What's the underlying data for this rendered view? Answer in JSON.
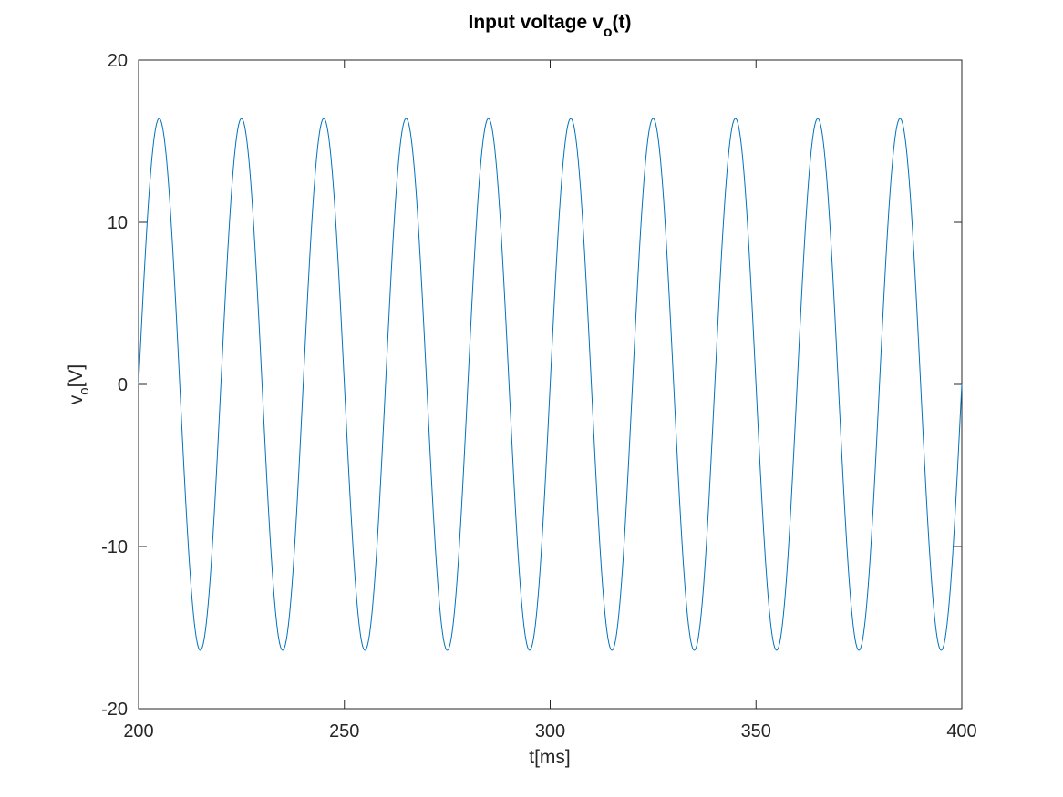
{
  "chart_data": {
    "type": "line",
    "title": {
      "prefix": "Input voltage v",
      "subscript": "o",
      "suffix": "(t)"
    },
    "xlabel": "t[ms]",
    "ylabel": {
      "prefix": "v",
      "subscript": "o",
      "suffix": "[V]"
    },
    "xlim": [
      200,
      400
    ],
    "ylim": [
      -20,
      20
    ],
    "xticks": [
      200,
      250,
      300,
      350,
      400
    ],
    "yticks": [
      -20,
      -10,
      0,
      10,
      20
    ],
    "grid": false,
    "legend": "none",
    "series": [
      {
        "function": "sine",
        "amplitude": 16.4,
        "frequency_hz": 50,
        "phase_rad": 0,
        "x_start": 200,
        "x_end": 400,
        "color": "#0072bd"
      }
    ],
    "colors": {
      "axis": "#262626",
      "line": "#0072bd",
      "background": "#ffffff"
    }
  }
}
